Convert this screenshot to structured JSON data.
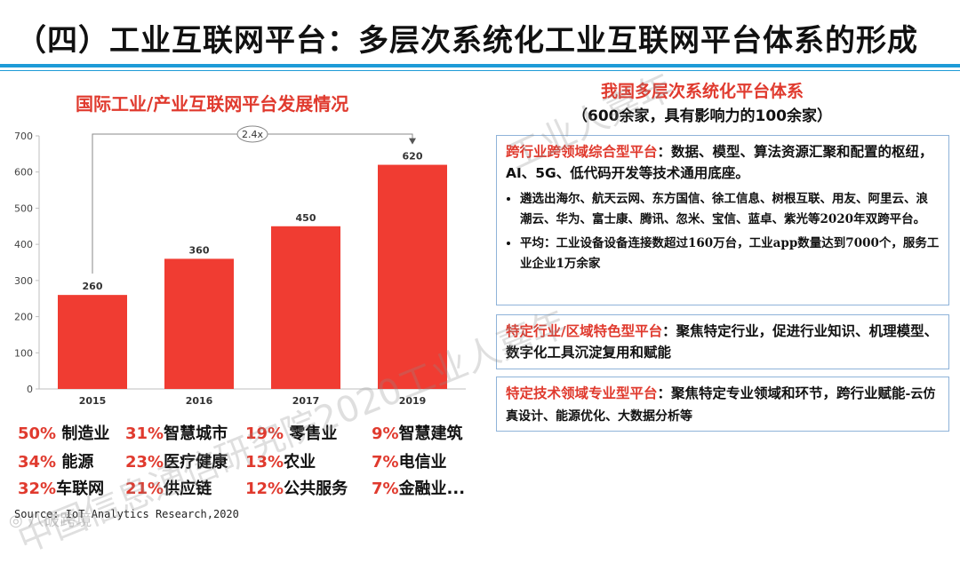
{
  "page_title": "（四）工业互联网平台：多层次系统化工业互联网平台体系的形成",
  "left": {
    "chart_title": "国际工业/产业互联网平台发展情况",
    "source": "Source: IoT Analytics Research,2020",
    "shares": [
      {
        "pct": "50%",
        "label": " 制造业"
      },
      {
        "pct": "31%",
        "label": "智慧城市"
      },
      {
        "pct": "19%",
        "label": " 零售业"
      },
      {
        "pct": "9%",
        "label": "智慧建筑"
      },
      {
        "pct": "34%",
        "label": " 能源"
      },
      {
        "pct": "23%",
        "label": "医疗健康"
      },
      {
        "pct": "13%",
        "label": "农业"
      },
      {
        "pct": "7%",
        "label": "电信业"
      },
      {
        "pct": "32%",
        "label": "车联网"
      },
      {
        "pct": "21%",
        "label": "供应链"
      },
      {
        "pct": "12%",
        "label": "公共服务"
      },
      {
        "pct": "7%",
        "label": "金融业..."
      }
    ]
  },
  "chart_data": {
    "type": "bar",
    "categories": [
      "2015",
      "2016",
      "2017",
      "2019"
    ],
    "values": [
      260,
      360,
      450,
      620
    ],
    "title": "国际工业/产业互联网平台发展情况",
    "xlabel": "",
    "ylabel": "",
    "ylim": [
      0,
      700
    ],
    "yticks": [
      0,
      100,
      200,
      300,
      400,
      500,
      600,
      700
    ],
    "grid": false,
    "bar_color": "#f03c32",
    "annotation": {
      "text": "2.4x",
      "from": "2015",
      "to": "2019"
    }
  },
  "right": {
    "title": "我国多层次系统化平台体系",
    "subtitle": "（600余家，具有影响力的100余家）",
    "box1": {
      "head": "跨行业跨领域综合型平台",
      "text": "：数据、模型、算法资源汇聚和配置的枢纽，AI、5G、低代码开发等技术通用底座。",
      "bullets": [
        "遴选出海尔、航天云网、东方国信、徐工信息、树根互联、用友、阿里云、浪潮云、华为、富士康、腾讯、忽米、宝信、蓝卓、紫光等2020年双跨平台。",
        "平均：工业设备设备连接数超过160万台，工业app数量达到7000个，服务工业企业1万余家"
      ]
    },
    "box2": {
      "head": "特定行业/区域特色型平台",
      "text": "：聚焦特定行业，促进行业知识、机理模型、数字化工具沉淀复用和赋能"
    },
    "box3": {
      "head": "特定技术领域专业型平台",
      "text": "：聚焦特定专业领域和环节，跨行业赋能",
      "tail": "-云仿真设计、能源优化、大数据分析等"
    }
  },
  "watermarks": {
    "line1": "中国信息通信研究院2020工业人嘉年",
    "line2": "工业人嘉年",
    "logo": "◎ 八破跨境"
  },
  "colors": {
    "accent": "#e03a2e",
    "rule": "#1e9bd7",
    "box_border": "#8fb3d9"
  }
}
